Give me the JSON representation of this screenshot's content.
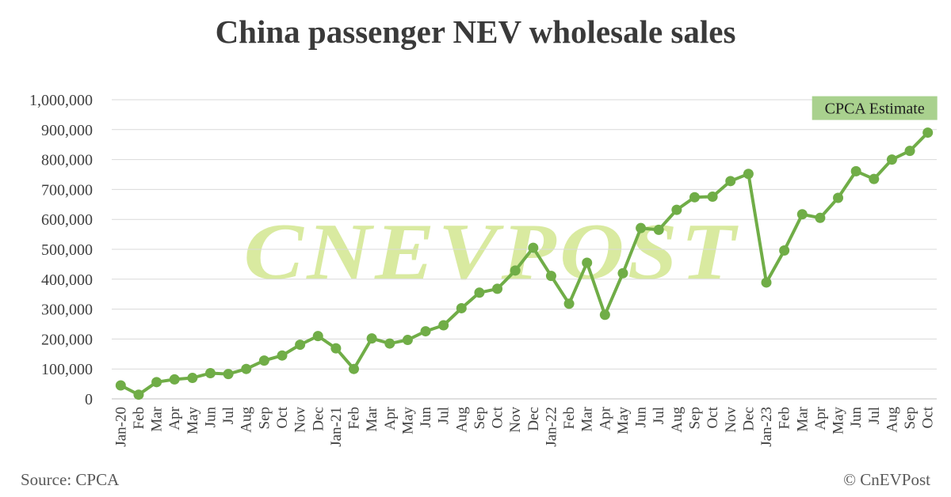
{
  "title": "China passenger NEV wholesale sales",
  "source": "Source: CPCA",
  "copyright": "© CnEVPost",
  "watermark": "CNEVPOST",
  "annotation": "CPCA Estimate",
  "colors": {
    "line": "#70ad47",
    "marker": "#70ad47",
    "annotation_bg": "#a9d18e",
    "watermark": "#d9eaa0",
    "grid": "#d9d9d9",
    "text": "#404040"
  },
  "chart_data": {
    "type": "line",
    "title": "China passenger NEV wholesale sales",
    "xlabel": "",
    "ylabel": "",
    "ylim": [
      0,
      1000000
    ],
    "yticks": [
      0,
      100000,
      200000,
      300000,
      400000,
      500000,
      600000,
      700000,
      800000,
      900000,
      1000000
    ],
    "ytick_labels": [
      "0",
      "100,000",
      "200,000",
      "300,000",
      "400,000",
      "500,000",
      "600,000",
      "700,000",
      "800,000",
      "900,000",
      "1,000,000"
    ],
    "grid": true,
    "legend": "none",
    "categories": [
      "Jan-20",
      "Feb",
      "Mar",
      "Apr",
      "May",
      "Jun",
      "Jul",
      "Aug",
      "Sep",
      "Oct",
      "Nov",
      "Dec",
      "Jan-21",
      "Feb",
      "Mar",
      "Apr",
      "May",
      "Jun",
      "Jul",
      "Aug",
      "Sep",
      "Oct",
      "Nov",
      "Dec",
      "Jan-22",
      "Feb",
      "Mar",
      "Apr",
      "May",
      "Jun",
      "Jul",
      "Aug",
      "Sep",
      "Oct",
      "Nov",
      "Dec",
      "Jan-23",
      "Feb",
      "Mar",
      "Apr",
      "May",
      "Jun",
      "Jul",
      "Aug",
      "Sep",
      "Oct"
    ],
    "series": [
      {
        "values": [
          45000,
          14000,
          56000,
          65000,
          70000,
          86000,
          83000,
          100000,
          128000,
          145000,
          181000,
          210000,
          169000,
          100000,
          202000,
          185000,
          197000,
          226000,
          246000,
          303000,
          355000,
          368000,
          429000,
          505000,
          411000,
          318000,
          455000,
          281000,
          420000,
          571000,
          565000,
          632000,
          674000,
          676000,
          728000,
          752000,
          389000,
          496000,
          617000,
          605000,
          672000,
          761000,
          735000,
          800000,
          829000,
          890000
        ]
      }
    ],
    "annotations": [
      {
        "text": "CPCA Estimate",
        "at_category_index": 45
      }
    ]
  }
}
